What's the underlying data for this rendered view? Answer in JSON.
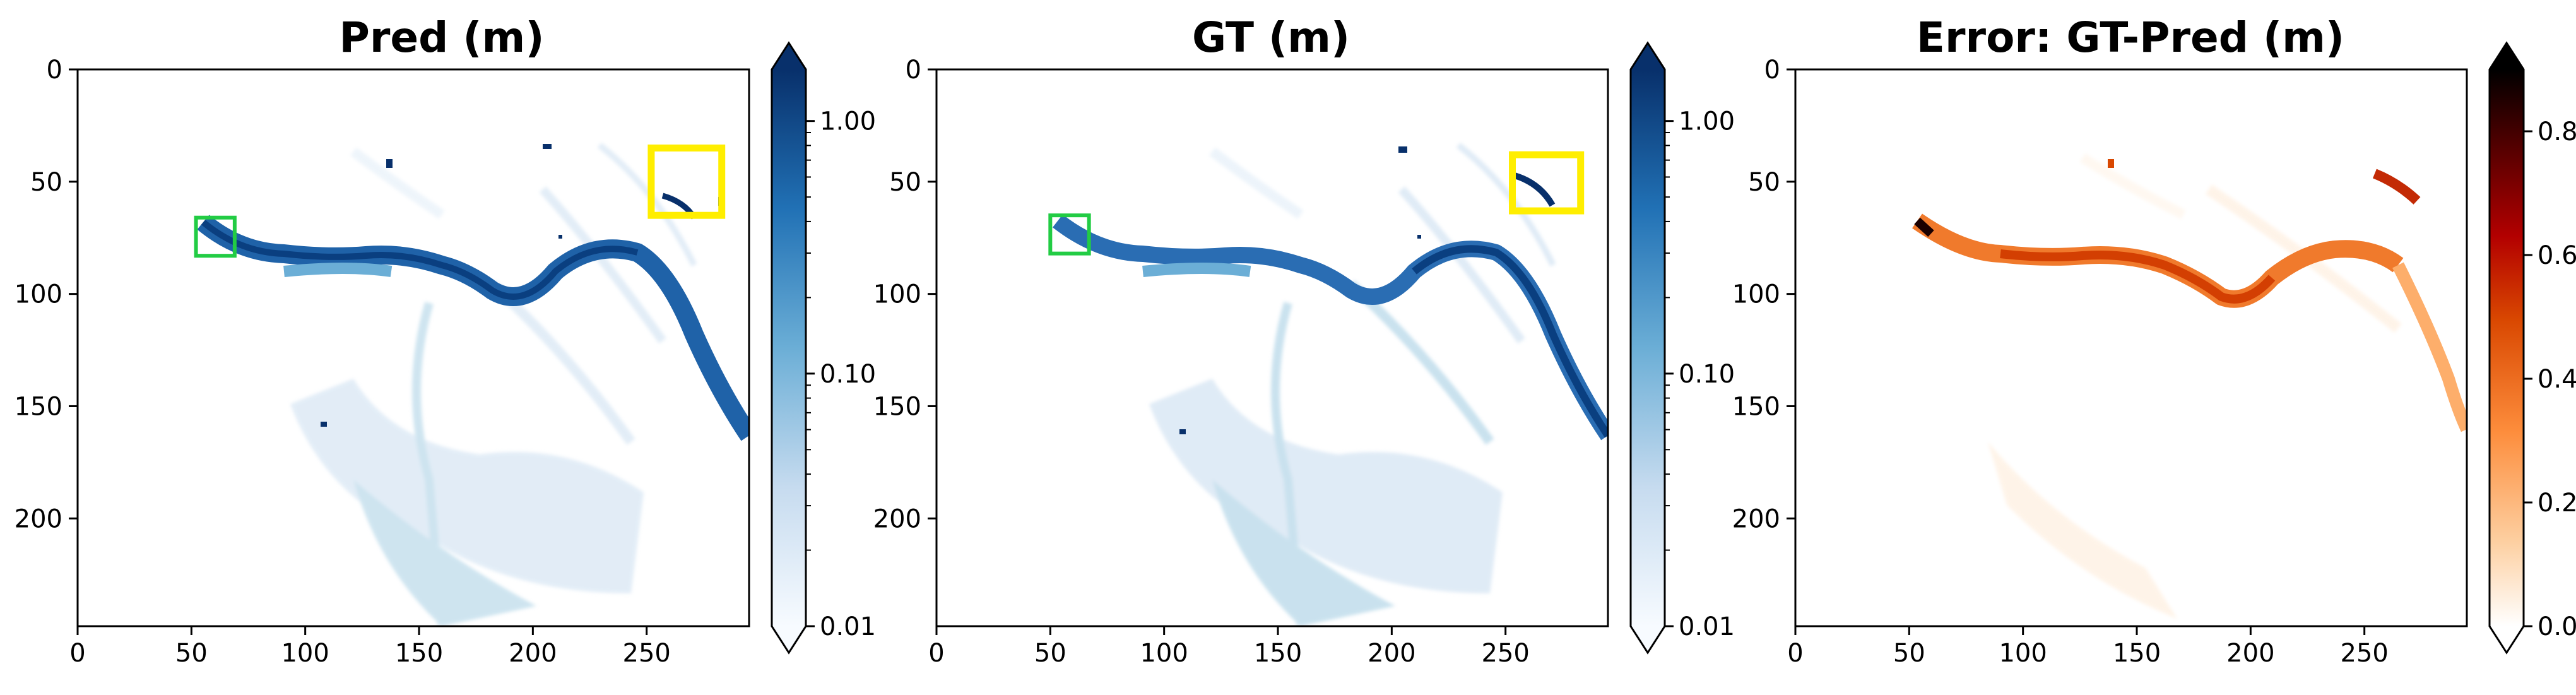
{
  "colors": {
    "blues_light": "#f7fbff",
    "blues_mid": "#6baed6",
    "blues_dark": "#08306b",
    "river_blue": "#1f62a8",
    "error_light": "#fff5eb",
    "error_mid": "#f16913",
    "error_dark": "#7f2704",
    "error_black": "#000000",
    "yellow_box": "#ffee00",
    "green_box": "#22cc44"
  },
  "chart_data": [
    {
      "type": "heatmap",
      "title": "Pred (m)",
      "xlim": [
        0,
        295
      ],
      "ylim": [
        248,
        0
      ],
      "x_ticks": [
        0,
        50,
        100,
        150,
        200,
        250
      ],
      "y_ticks": [
        0,
        50,
        100,
        150,
        200
      ],
      "x_tick_labels": [
        "0",
        "50",
        "100",
        "150",
        "200",
        "250"
      ],
      "y_tick_labels": [
        "0",
        "50",
        "100",
        "150",
        "200"
      ],
      "colorbar": {
        "scale": "log",
        "range": [
          0.01,
          1.6
        ],
        "ticks": [
          0.01,
          0.1,
          1.0
        ],
        "tick_labels": [
          "0.01",
          "0.10",
          "1.00"
        ],
        "extend": "both",
        "colormap": "Blues"
      },
      "highlight_boxes": [
        {
          "color": "yellow",
          "x0": 252,
          "x1": 283,
          "y0": 35,
          "y1": 65
        },
        {
          "color": "green",
          "x0": 52,
          "x1": 69,
          "y0": 66,
          "y1": 83
        }
      ]
    },
    {
      "type": "heatmap",
      "title": "GT (m)",
      "xlim": [
        0,
        295
      ],
      "ylim": [
        248,
        0
      ],
      "x_ticks": [
        0,
        50,
        100,
        150,
        200,
        250
      ],
      "y_ticks": [
        0,
        50,
        100,
        150,
        200
      ],
      "x_tick_labels": [
        "0",
        "50",
        "100",
        "150",
        "200",
        "250"
      ],
      "y_tick_labels": [
        "0",
        "50",
        "100",
        "150",
        "200"
      ],
      "colorbar": {
        "scale": "log",
        "range": [
          0.01,
          1.6
        ],
        "ticks": [
          0.01,
          0.1,
          1.0
        ],
        "tick_labels": [
          "0.01",
          "0.10",
          "1.00"
        ],
        "extend": "both",
        "colormap": "Blues"
      },
      "highlight_boxes": [
        {
          "color": "yellow",
          "x0": 253,
          "x1": 283,
          "y0": 38,
          "y1": 63
        },
        {
          "color": "green",
          "x0": 50,
          "x1": 67,
          "y0": 65,
          "y1": 82
        }
      ]
    },
    {
      "type": "heatmap",
      "title": "Error: GT-Pred (m)",
      "xlim": [
        0,
        295
      ],
      "ylim": [
        248,
        0
      ],
      "x_ticks": [
        0,
        50,
        100,
        150,
        200,
        250
      ],
      "y_ticks": [
        0,
        50,
        100,
        150,
        200
      ],
      "x_tick_labels": [
        "0",
        "50",
        "100",
        "150",
        "200",
        "250"
      ],
      "y_tick_labels": [
        "0",
        "50",
        "100",
        "150",
        "200"
      ],
      "colorbar": {
        "scale": "linear",
        "range": [
          0.0,
          0.9
        ],
        "ticks": [
          0.0,
          0.2,
          0.4,
          0.6,
          0.8
        ],
        "tick_labels": [
          "0.0",
          "0.2",
          "0.4",
          "0.6",
          "0.8"
        ],
        "extend": "both",
        "colormap": "gist_heat_r"
      },
      "highlight_boxes": []
    }
  ]
}
